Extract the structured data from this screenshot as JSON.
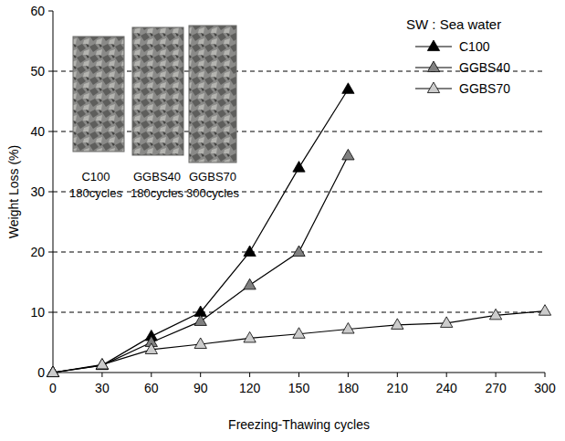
{
  "chart_data": {
    "type": "line",
    "x_label": "Freezing-Thawing cycles",
    "y_label": "Weight Loss (%)",
    "annotations": [
      "SW : Sea water"
    ],
    "photos": [
      {
        "label": "C100",
        "caption": "180cycles"
      },
      {
        "label": "GGBS40",
        "caption": "180cycles"
      },
      {
        "label": "GGBS70",
        "caption": "300cycles"
      }
    ],
    "x": [
      0,
      30,
      60,
      90,
      120,
      150,
      180,
      210,
      240,
      270,
      300
    ],
    "series": [
      {
        "name": "C100",
        "color": "#000000",
        "marker": "triangle",
        "line_style": "solid",
        "values": [
          0,
          1.2,
          6,
          10,
          20,
          34,
          47,
          null,
          null,
          null,
          null
        ]
      },
      {
        "name": "GGBS40",
        "color": "#808080",
        "marker": "triangle",
        "line_style": "solid",
        "values": [
          0,
          1.2,
          5,
          8.5,
          14.5,
          20,
          36,
          null,
          null,
          null,
          null
        ]
      },
      {
        "name": "GGBS70",
        "color": "#cccccc",
        "marker": "triangle",
        "line_style": "solid",
        "values": [
          0,
          1.3,
          3.8,
          4.7,
          5.7,
          6.4,
          7.2,
          7.9,
          8.2,
          9.5,
          10.2
        ]
      }
    ],
    "xlim": [
      0,
      300
    ],
    "xticks": [
      0,
      30,
      60,
      90,
      120,
      150,
      180,
      210,
      240,
      270,
      300
    ],
    "ylim": [
      0,
      60
    ],
    "yticks": [
      0,
      10,
      20,
      30,
      40,
      50,
      60
    ],
    "grid": true,
    "legend": "top-right"
  }
}
